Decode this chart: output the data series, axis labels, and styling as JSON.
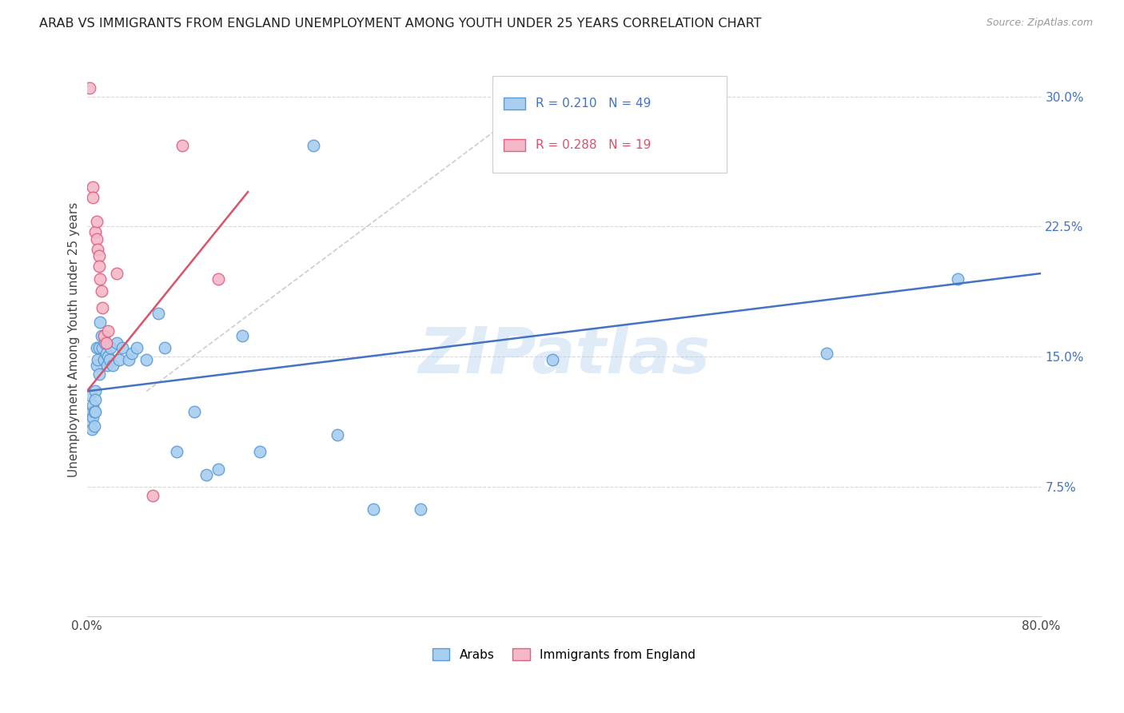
{
  "title": "ARAB VS IMMIGRANTS FROM ENGLAND UNEMPLOYMENT AMONG YOUTH UNDER 25 YEARS CORRELATION CHART",
  "source": "Source: ZipAtlas.com",
  "ylabel": "Unemployment Among Youth under 25 years",
  "xmin": 0.0,
  "xmax": 0.8,
  "ymin": 0.0,
  "ymax": 0.32,
  "yticks_right": [
    0.0,
    0.075,
    0.15,
    0.225,
    0.3
  ],
  "ytick_labels_right": [
    "",
    "7.5%",
    "15.0%",
    "22.5%",
    "30.0%"
  ],
  "legend_arab_R": "0.210",
  "legend_arab_N": "49",
  "legend_eng_R": "0.288",
  "legend_eng_N": "19",
  "arab_color": "#a8cef0",
  "eng_color": "#f5b8c8",
  "arab_edge_color": "#5b9bd5",
  "eng_edge_color": "#e06080",
  "arab_line_color": "#4472c4",
  "eng_line_color": "#d9536a",
  "dashed_line_color": "#c8c8c8",
  "watermark": "ZIPatlas",
  "arab_scatter": [
    [
      0.002,
      0.128
    ],
    [
      0.003,
      0.112
    ],
    [
      0.004,
      0.118
    ],
    [
      0.004,
      0.108
    ],
    [
      0.005,
      0.122
    ],
    [
      0.005,
      0.115
    ],
    [
      0.006,
      0.118
    ],
    [
      0.006,
      0.11
    ],
    [
      0.007,
      0.13
    ],
    [
      0.007,
      0.125
    ],
    [
      0.007,
      0.118
    ],
    [
      0.008,
      0.155
    ],
    [
      0.008,
      0.145
    ],
    [
      0.009,
      0.148
    ],
    [
      0.01,
      0.155
    ],
    [
      0.01,
      0.14
    ],
    [
      0.011,
      0.17
    ],
    [
      0.012,
      0.162
    ],
    [
      0.013,
      0.155
    ],
    [
      0.014,
      0.148
    ],
    [
      0.015,
      0.158
    ],
    [
      0.016,
      0.152
    ],
    [
      0.017,
      0.145
    ],
    [
      0.018,
      0.15
    ],
    [
      0.019,
      0.148
    ],
    [
      0.02,
      0.155
    ],
    [
      0.022,
      0.145
    ],
    [
      0.025,
      0.158
    ],
    [
      0.027,
      0.148
    ],
    [
      0.03,
      0.155
    ],
    [
      0.035,
      0.148
    ],
    [
      0.038,
      0.152
    ],
    [
      0.042,
      0.155
    ],
    [
      0.05,
      0.148
    ],
    [
      0.06,
      0.175
    ],
    [
      0.065,
      0.155
    ],
    [
      0.075,
      0.095
    ],
    [
      0.09,
      0.118
    ],
    [
      0.1,
      0.082
    ],
    [
      0.11,
      0.085
    ],
    [
      0.13,
      0.162
    ],
    [
      0.145,
      0.095
    ],
    [
      0.19,
      0.272
    ],
    [
      0.21,
      0.105
    ],
    [
      0.24,
      0.062
    ],
    [
      0.28,
      0.062
    ],
    [
      0.39,
      0.148
    ],
    [
      0.62,
      0.152
    ],
    [
      0.73,
      0.195
    ]
  ],
  "eng_scatter": [
    [
      0.002,
      0.305
    ],
    [
      0.005,
      0.248
    ],
    [
      0.005,
      0.242
    ],
    [
      0.007,
      0.222
    ],
    [
      0.008,
      0.228
    ],
    [
      0.008,
      0.218
    ],
    [
      0.009,
      0.212
    ],
    [
      0.01,
      0.208
    ],
    [
      0.01,
      0.202
    ],
    [
      0.011,
      0.195
    ],
    [
      0.012,
      0.188
    ],
    [
      0.013,
      0.178
    ],
    [
      0.014,
      0.162
    ],
    [
      0.016,
      0.158
    ],
    [
      0.018,
      0.165
    ],
    [
      0.025,
      0.198
    ],
    [
      0.055,
      0.07
    ],
    [
      0.08,
      0.272
    ],
    [
      0.11,
      0.195
    ]
  ]
}
